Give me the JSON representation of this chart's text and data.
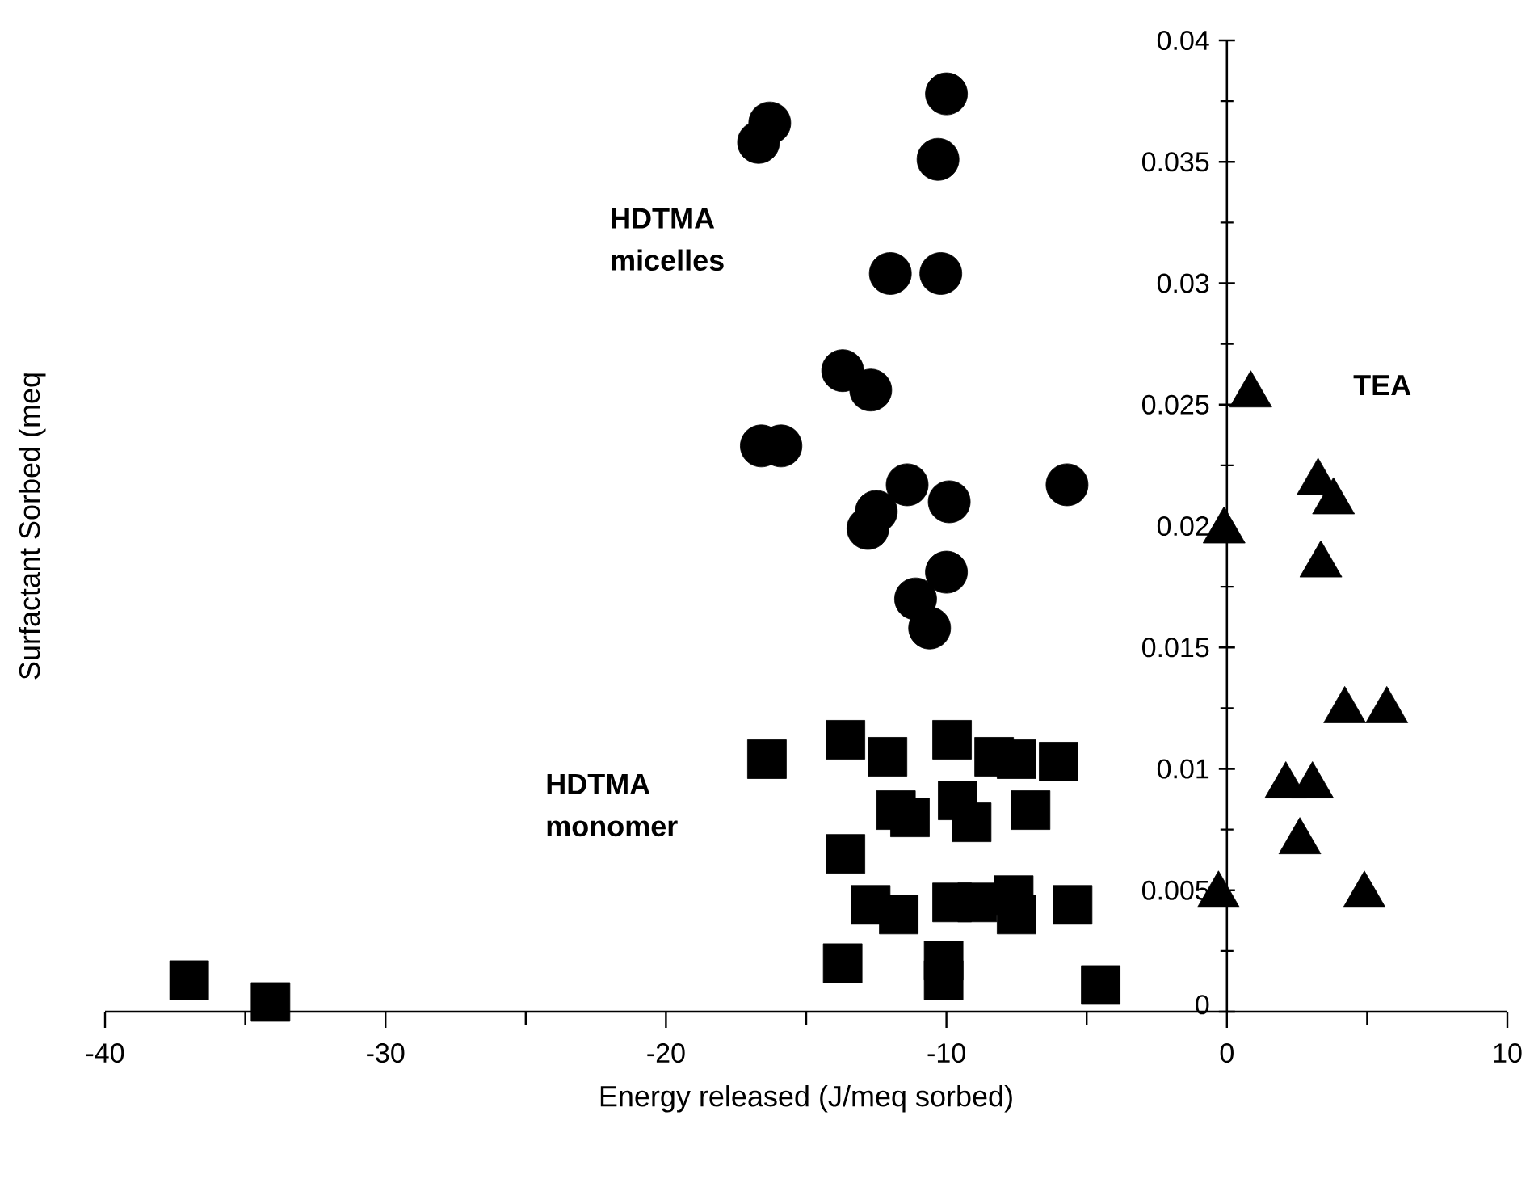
{
  "chart_data": {
    "type": "scatter",
    "xlabel": "Energy released (J/meq sorbed)",
    "ylabel": "Surfactant Sorbed (meq",
    "xlim": [
      -40,
      10
    ],
    "ylim": [
      0,
      0.04
    ],
    "xticks": [
      -40,
      -30,
      -20,
      -10,
      0,
      10
    ],
    "yticks": [
      0,
      0.005,
      0.01,
      0.015,
      0.02,
      0.025,
      0.03,
      0.035,
      0.04
    ],
    "grid": false,
    "series": [
      {
        "name": "HDTMA micelles",
        "color": "#000000",
        "marker": "circle",
        "x": [
          -10.0,
          -16.3,
          -16.7,
          -10.3,
          -12.0,
          -10.2,
          -13.7,
          -12.7,
          -16.6,
          -15.9,
          -11.4,
          -9.9,
          -12.5,
          -12.8,
          -5.7,
          -10.0,
          -11.1,
          -10.6
        ],
        "values": [
          0.0378,
          0.0366,
          0.0358,
          0.0351,
          0.0304,
          0.0304,
          0.0264,
          0.0256,
          0.0233,
          0.0233,
          0.0217,
          0.021,
          0.0206,
          0.0199,
          0.0217,
          0.0181,
          0.017,
          0.0158
        ]
      },
      {
        "name": "HDTMA monomer",
        "color": "#000000",
        "marker": "square",
        "x": [
          -16.4,
          -13.6,
          -12.1,
          -9.8,
          -8.3,
          -6.0,
          -7.5,
          -7.0,
          -11.8,
          -11.3,
          -9.6,
          -9.1,
          -13.6,
          -12.7,
          -11.7,
          -9.8,
          -8.9,
          -7.6,
          -7.5,
          -5.5,
          -13.7,
          -10.1,
          -10.1,
          -4.5,
          -37.0,
          -34.1
        ],
        "values": [
          0.0104,
          0.0112,
          0.0105,
          0.0112,
          0.0105,
          0.0103,
          0.0104,
          0.0083,
          0.0083,
          0.008,
          0.0087,
          0.0078,
          0.0065,
          0.0044,
          0.004,
          0.0045,
          0.0045,
          0.0048,
          0.004,
          0.0044,
          0.002,
          0.0021,
          0.0013,
          0.0011,
          0.0013,
          0.0004
        ]
      },
      {
        "name": "TEA",
        "color": "#000000",
        "marker": "triangle",
        "x": [
          0.85,
          -0.1,
          3.25,
          3.8,
          3.35,
          4.2,
          5.7,
          2.1,
          3.05,
          2.6,
          -0.3,
          4.9
        ],
        "values": [
          0.0254,
          0.0198,
          0.0218,
          0.021,
          0.0184,
          0.0124,
          0.0124,
          0.0093,
          0.0093,
          0.007,
          0.0048,
          0.0048
        ]
      }
    ]
  }
}
